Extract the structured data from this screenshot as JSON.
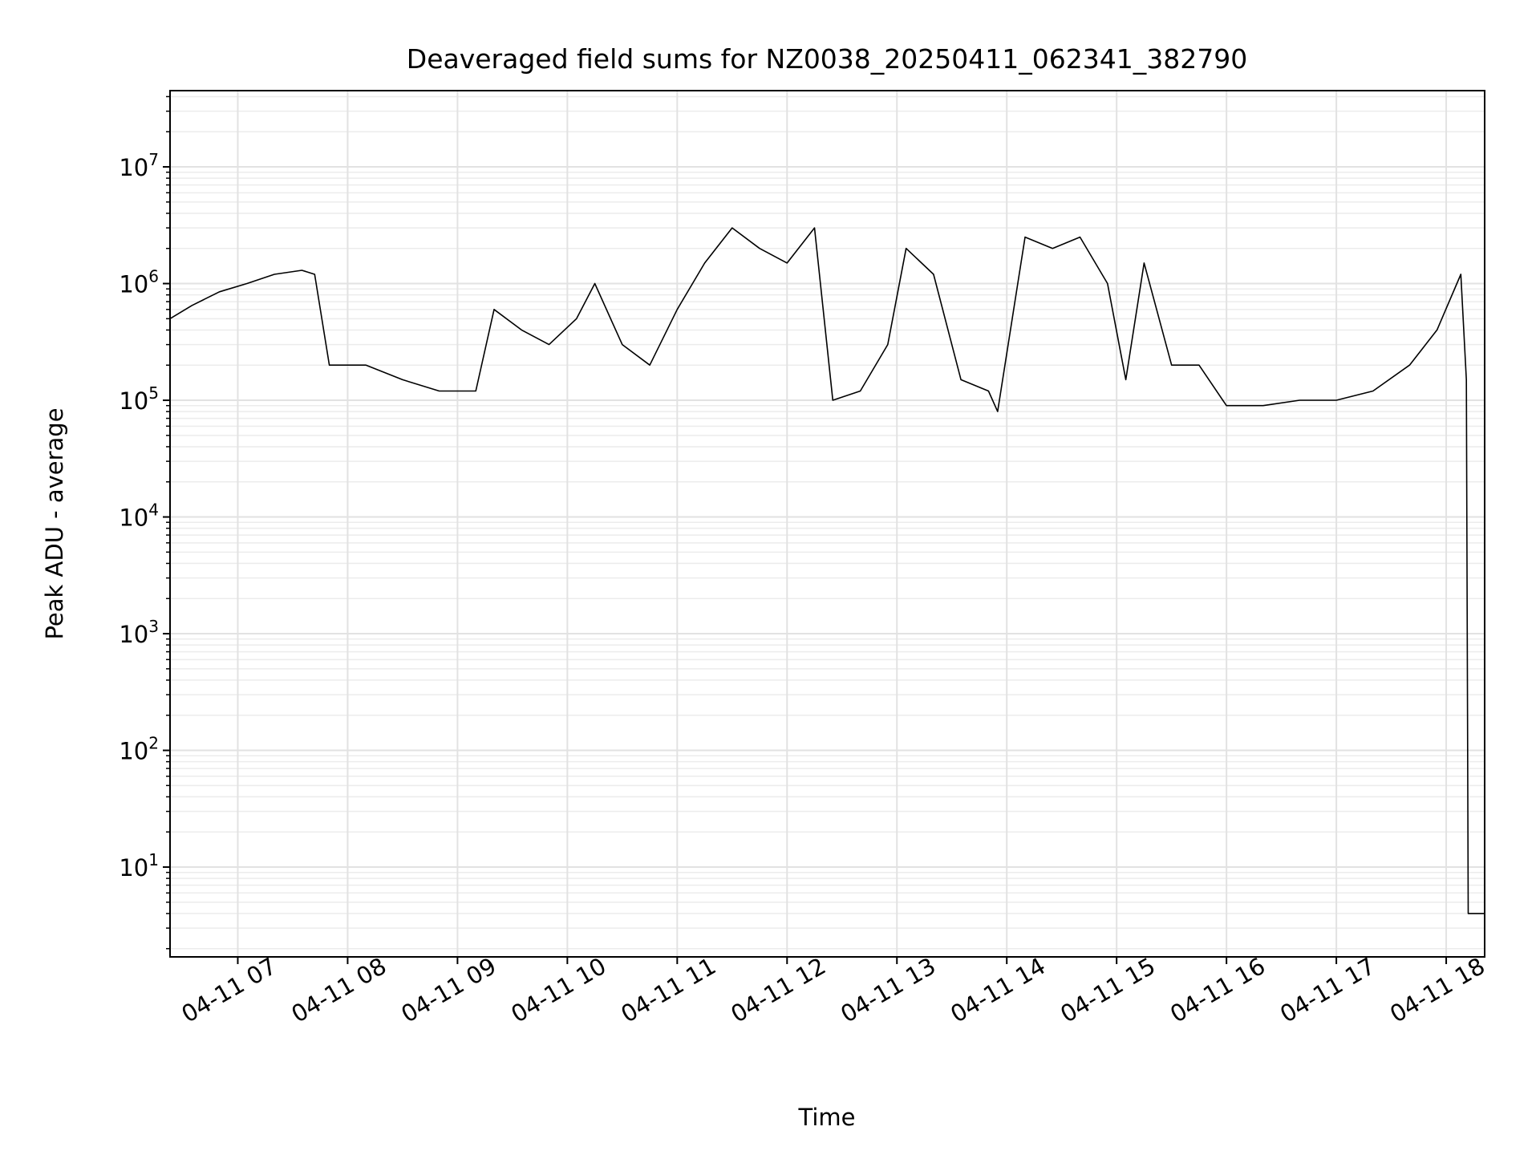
{
  "chart_data": {
    "type": "line",
    "title": "Deaveraged field sums for NZ0038_20250411_062341_382790",
    "xlabel": "Time",
    "ylabel": "Peak ADU - average",
    "x_scale": "time",
    "y_scale": "log",
    "xlim": [
      "2025-04-11 06:23",
      "2025-04-11 18:21"
    ],
    "ylim": [
      1.7,
      45000000
    ],
    "grid": "major and minor",
    "x_ticks": [
      {
        "t": "2025-04-11 07:00",
        "label": "04-11 07"
      },
      {
        "t": "2025-04-11 08:00",
        "label": "04-11 08"
      },
      {
        "t": "2025-04-11 09:00",
        "label": "04-11 09"
      },
      {
        "t": "2025-04-11 10:00",
        "label": "04-11 10"
      },
      {
        "t": "2025-04-11 11:00",
        "label": "04-11 11"
      },
      {
        "t": "2025-04-11 12:00",
        "label": "04-11 12"
      },
      {
        "t": "2025-04-11 13:00",
        "label": "04-11 13"
      },
      {
        "t": "2025-04-11 14:00",
        "label": "04-11 14"
      },
      {
        "t": "2025-04-11 15:00",
        "label": "04-11 15"
      },
      {
        "t": "2025-04-11 16:00",
        "label": "04-11 16"
      },
      {
        "t": "2025-04-11 17:00",
        "label": "04-11 17"
      },
      {
        "t": "2025-04-11 18:00",
        "label": "04-11 18"
      }
    ],
    "y_ticks": [
      {
        "value": 10,
        "base": "10",
        "exp": "1"
      },
      {
        "value": 100,
        "base": "10",
        "exp": "2"
      },
      {
        "value": 1000,
        "base": "10",
        "exp": "3"
      },
      {
        "value": 10000,
        "base": "10",
        "exp": "4"
      },
      {
        "value": 100000,
        "base": "10",
        "exp": "5"
      },
      {
        "value": 1000000,
        "base": "10",
        "exp": "6"
      },
      {
        "value": 10000000,
        "base": "10",
        "exp": "7"
      }
    ],
    "series": [
      {
        "color": "#000000",
        "x": [
          "2025-04-11 06:23",
          "2025-04-11 06:35",
          "2025-04-11 06:50",
          "2025-04-11 07:05",
          "2025-04-11 07:20",
          "2025-04-11 07:35",
          "2025-04-11 07:42",
          "2025-04-11 07:50",
          "2025-04-11 08:10",
          "2025-04-11 08:30",
          "2025-04-11 08:50",
          "2025-04-11 09:10",
          "2025-04-11 09:20",
          "2025-04-11 09:35",
          "2025-04-11 09:50",
          "2025-04-11 10:05",
          "2025-04-11 10:15",
          "2025-04-11 10:30",
          "2025-04-11 10:45",
          "2025-04-11 11:00",
          "2025-04-11 11:15",
          "2025-04-11 11:30",
          "2025-04-11 11:45",
          "2025-04-11 12:00",
          "2025-04-11 12:15",
          "2025-04-11 12:25",
          "2025-04-11 12:40",
          "2025-04-11 12:55",
          "2025-04-11 13:05",
          "2025-04-11 13:20",
          "2025-04-11 13:35",
          "2025-04-11 13:50",
          "2025-04-11 13:55",
          "2025-04-11 14:10",
          "2025-04-11 14:25",
          "2025-04-11 14:40",
          "2025-04-11 14:55",
          "2025-04-11 15:05",
          "2025-04-11 15:15",
          "2025-04-11 15:30",
          "2025-04-11 15:45",
          "2025-04-11 16:00",
          "2025-04-11 16:20",
          "2025-04-11 16:40",
          "2025-04-11 17:00",
          "2025-04-11 17:20",
          "2025-04-11 17:40",
          "2025-04-11 17:55",
          "2025-04-11 18:08",
          "2025-04-11 18:11",
          "2025-04-11 18:12",
          "2025-04-11 18:21"
        ],
        "values": [
          500000,
          650000,
          850000,
          1000000,
          1200000,
          1300000,
          1200000,
          200000,
          200000,
          150000,
          120000,
          120000,
          600000,
          400000,
          300000,
          500000,
          1000000,
          300000,
          200000,
          600000,
          1500000,
          3000000,
          2000000,
          1500000,
          3000000,
          100000,
          120000,
          300000,
          2000000,
          1200000,
          150000,
          120000,
          80000,
          2500000,
          2000000,
          2500000,
          1000000,
          150000,
          1500000,
          200000,
          200000,
          90000,
          90000,
          100000,
          100000,
          120000,
          200000,
          400000,
          1200000,
          150000,
          4,
          4
        ]
      }
    ]
  }
}
